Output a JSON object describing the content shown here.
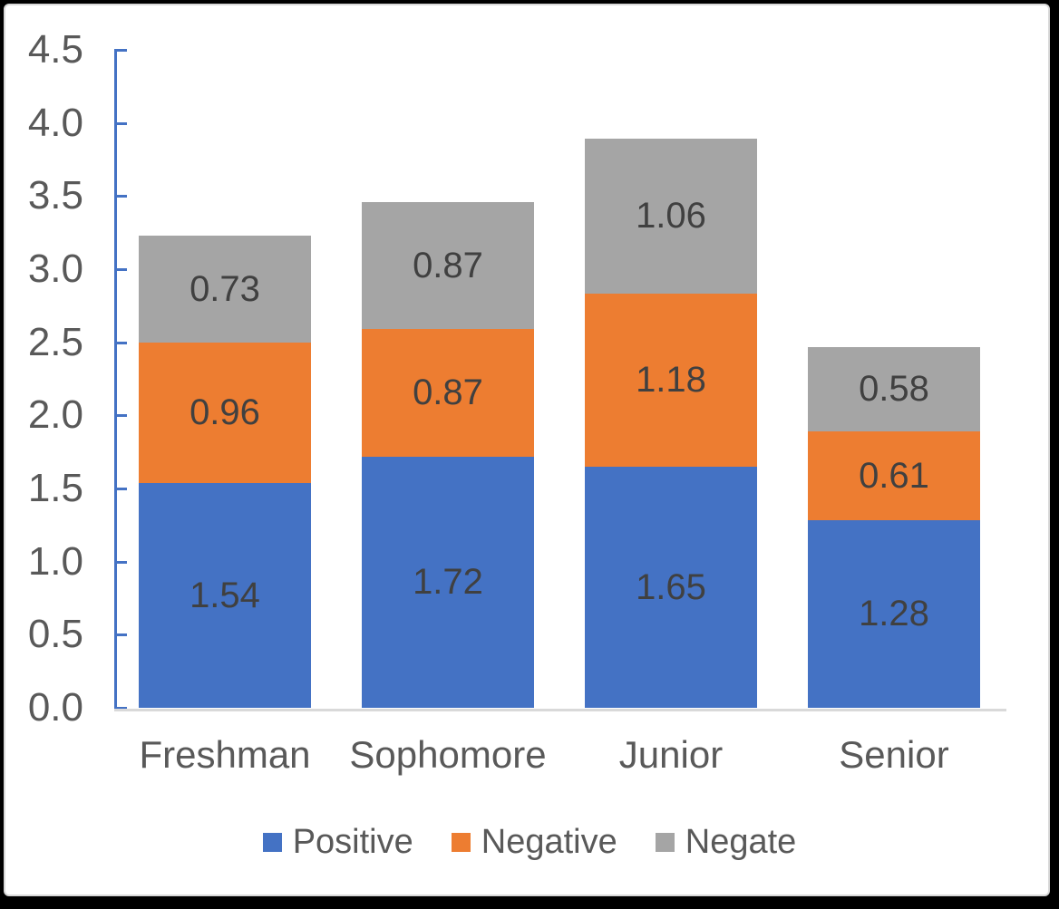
{
  "chart_data": {
    "type": "bar",
    "stacked": true,
    "categories": [
      "Freshman",
      "Sophomore",
      "Junior",
      "Senior"
    ],
    "series": [
      {
        "name": "Positive",
        "color": "#4472C4",
        "values": [
          1.54,
          1.72,
          1.65,
          1.28
        ]
      },
      {
        "name": "Negative",
        "color": "#ED7D31",
        "values": [
          0.96,
          0.87,
          1.18,
          0.61
        ]
      },
      {
        "name": "Negate",
        "color": "#A5A5A5",
        "values": [
          0.73,
          0.87,
          1.06,
          0.58
        ]
      }
    ],
    "stack_totals": [
      3.23,
      3.46,
      3.89,
      2.47
    ],
    "title": "",
    "xlabel": "",
    "ylabel": "",
    "ylim": [
      0,
      4.5
    ],
    "ytick_step": 0.5,
    "ytick_labels": [
      "0.0",
      "0.5",
      "1.0",
      "1.5",
      "2.0",
      "2.5",
      "3.0",
      "3.5",
      "4.0",
      "4.5"
    ],
    "grid": false,
    "legend_position": "bottom",
    "legend_labels": [
      "Positive",
      "Negative",
      "Negate"
    ],
    "value_label_decimals": 2,
    "colors": {
      "y_axis_line": "#4472C4",
      "x_axis_line": "#D9D9D9",
      "panel_border": "#D9D9D9",
      "frame": "#000000",
      "axis_text": "#595959",
      "value_text": "#404040"
    }
  }
}
